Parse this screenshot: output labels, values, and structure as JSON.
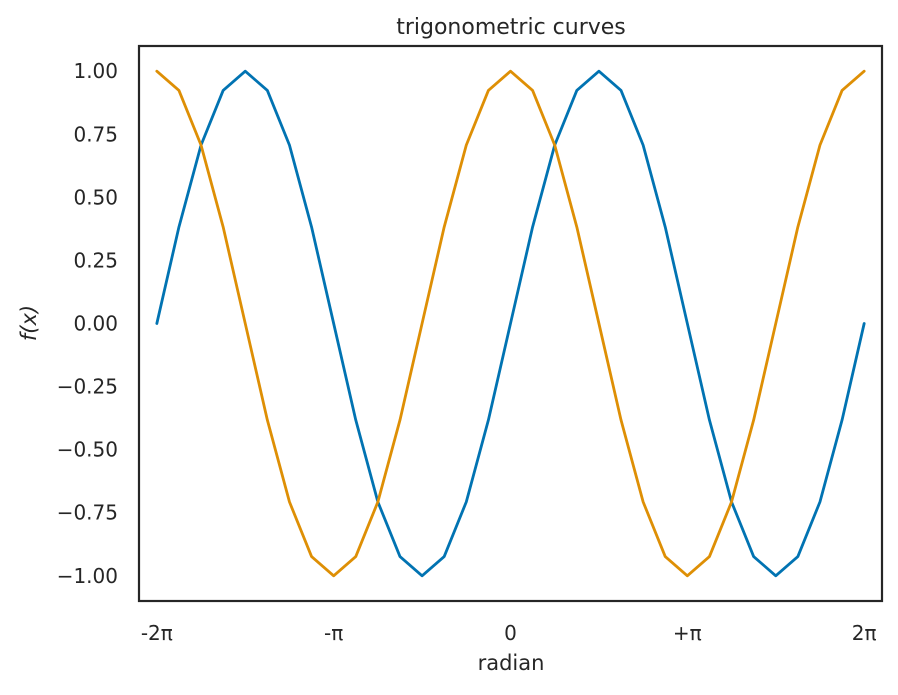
{
  "chart_data": {
    "type": "line",
    "title": "trigonometric curves",
    "xlabel": "radian",
    "ylabel": "f(x)",
    "x_range_label": "from -2π to 2π",
    "xlim": [
      -6.6,
      6.6
    ],
    "ylim": [
      -1.1,
      1.1
    ],
    "grid": false,
    "x_ticks": [
      {
        "value": -6.283185,
        "label": "-2π"
      },
      {
        "value": -3.141593,
        "label": "-π"
      },
      {
        "value": 0,
        "label": "0"
      },
      {
        "value": 3.141593,
        "label": "+π"
      },
      {
        "value": 6.283185,
        "label": "2π"
      }
    ],
    "y_ticks": [
      {
        "value": 1.0,
        "label": "1.00"
      },
      {
        "value": 0.75,
        "label": "0.75"
      },
      {
        "value": 0.5,
        "label": "0.50"
      },
      {
        "value": 0.25,
        "label": "0.25"
      },
      {
        "value": 0.0,
        "label": "0.00"
      },
      {
        "value": -0.25,
        "label": "−0.25"
      },
      {
        "value": -0.5,
        "label": "−0.50"
      },
      {
        "value": -0.75,
        "label": "−0.75"
      },
      {
        "value": -1.0,
        "label": "−1.00"
      }
    ],
    "series": [
      {
        "function": "sin",
        "color": "#0173b2",
        "x": [
          -6.283185,
          -5.890486,
          -5.497787,
          -5.105088,
          -4.712389,
          -4.31969,
          -3.926991,
          -3.534292,
          -3.141593,
          -2.748894,
          -2.356194,
          -1.963495,
          -1.570796,
          -1.178097,
          -0.785398,
          -0.392699,
          0,
          0.392699,
          0.785398,
          1.178097,
          1.570796,
          1.963495,
          2.356194,
          2.748894,
          3.141593,
          3.534292,
          3.926991,
          4.31969,
          4.712389,
          5.105088,
          5.497787,
          5.890486,
          6.283185
        ],
        "y": [
          0,
          0.3827,
          0.7071,
          0.9239,
          1,
          0.9239,
          0.7071,
          0.3827,
          0,
          -0.3827,
          -0.7071,
          -0.9239,
          -1,
          -0.9239,
          -0.7071,
          -0.3827,
          0,
          0.3827,
          0.7071,
          0.9239,
          1,
          0.9239,
          0.7071,
          0.3827,
          0,
          -0.3827,
          -0.7071,
          -0.9239,
          -1,
          -0.9239,
          -0.7071,
          -0.3827,
          0
        ]
      },
      {
        "function": "cos",
        "color": "#de8f05",
        "x": [
          -6.283185,
          -5.890486,
          -5.497787,
          -5.105088,
          -4.712389,
          -4.31969,
          -3.926991,
          -3.534292,
          -3.141593,
          -2.748894,
          -2.356194,
          -1.963495,
          -1.570796,
          -1.178097,
          -0.785398,
          -0.392699,
          0,
          0.392699,
          0.785398,
          1.178097,
          1.570796,
          1.963495,
          2.356194,
          2.748894,
          3.141593,
          3.534292,
          3.926991,
          4.31969,
          4.712389,
          5.105088,
          5.497787,
          5.890486,
          6.283185
        ],
        "y": [
          1,
          0.9239,
          0.7071,
          0.3827,
          0,
          -0.3827,
          -0.7071,
          -0.9239,
          -1,
          -0.9239,
          -0.7071,
          -0.3827,
          0,
          0.3827,
          0.7071,
          0.9239,
          1,
          0.9239,
          0.7071,
          0.3827,
          0,
          -0.3827,
          -0.7071,
          -0.9239,
          -1,
          -0.9239,
          -0.7071,
          -0.3827,
          0,
          0.3827,
          0.7071,
          0.9239,
          1
        ]
      }
    ]
  }
}
